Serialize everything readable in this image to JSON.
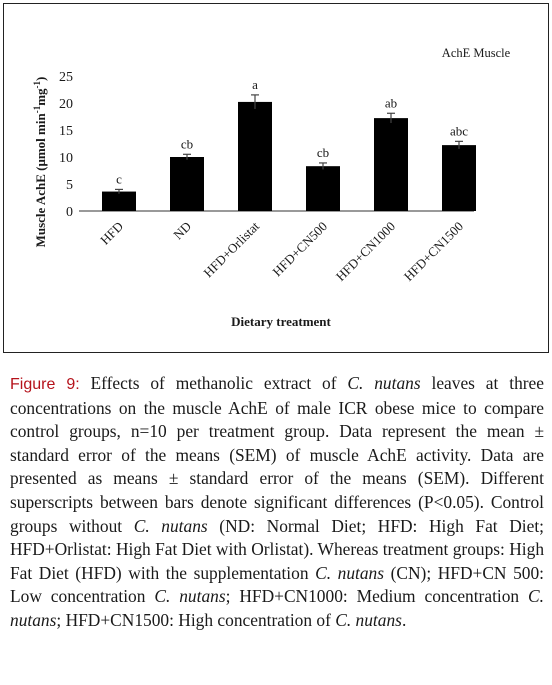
{
  "chart_data": {
    "type": "bar",
    "title": "AchE Muscle",
    "ylabel": "Muscle AchE (μmol min⁻¹mg⁻¹)",
    "ylabel_parts": [
      "Muscle AchE (μmol min",
      "-1",
      "mg",
      "-1",
      ")"
    ],
    "xlabel": "Dietary treatment",
    "categories": [
      "HFD",
      "ND",
      "HFD+Orlistat",
      "HFD+CN500",
      "HFD+CN1000",
      "HFD+CN1500"
    ],
    "values": [
      3.6,
      10.0,
      20.2,
      8.3,
      17.2,
      12.2
    ],
    "errors": [
      0.4,
      0.5,
      1.3,
      0.6,
      0.9,
      0.7
    ],
    "superscripts": [
      "c",
      "cb",
      "a",
      "cb",
      "ab",
      "abc"
    ],
    "ylim": [
      0,
      25
    ],
    "yticks": [
      0,
      5,
      10,
      15,
      20,
      25
    ],
    "grid": false,
    "bar_color": "#000000"
  },
  "caption": {
    "label": "Figure 9:",
    "segments": [
      {
        "t": " Effects of methanolic extract of "
      },
      {
        "t": "C. nutans",
        "i": true
      },
      {
        "t": " leaves at three concentrations on the muscle AchE of male ICR obese mice to compare control groups, n=10 per treatment group. Data represent the mean ± standard error of the means (SEM) of muscle AchE activity. Data are presented as means ± standard error of the means (SEM). Different superscripts between bars denote significant differences (P<0.05). Control groups without "
      },
      {
        "t": "C. nutans",
        "i": true
      },
      {
        "t": " (ND: Normal Diet; HFD: High Fat Diet; HFD+Orlistat: High Fat Diet with Orlistat). Whereas treatment groups: High Fat Diet (HFD) with the supplementation "
      },
      {
        "t": "C. nutans",
        "i": true
      },
      {
        "t": " (CN); HFD+CN 500: Low concentration "
      },
      {
        "t": "C. nutans",
        "i": true
      },
      {
        "t": "; HFD+CN1000: Medium concentration "
      },
      {
        "t": "C. nutans",
        "i": true
      },
      {
        "t": "; HFD+CN1500: High concentration of "
      },
      {
        "t": "C. nutans",
        "i": true
      },
      {
        "t": "."
      }
    ]
  }
}
